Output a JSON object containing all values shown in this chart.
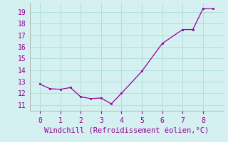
{
  "x": [
    0,
    0.5,
    1,
    1.5,
    2,
    2.5,
    3,
    3.5,
    4,
    5,
    6,
    7,
    7.5,
    8,
    8.5
  ],
  "y": [
    12.8,
    12.4,
    12.35,
    12.5,
    11.7,
    11.55,
    11.6,
    11.1,
    12.0,
    13.9,
    16.3,
    17.5,
    17.5,
    19.3,
    19.3
  ],
  "line_color": "#990099",
  "marker_color": "#990099",
  "bg_color": "#d4f0f0",
  "grid_color": "#b0dede",
  "xlabel": "Windchill (Refroidissement éolien,°C)",
  "xlim": [
    -0.5,
    9.0
  ],
  "ylim": [
    10.5,
    19.8
  ],
  "xticks": [
    0,
    1,
    2,
    3,
    4,
    5,
    6,
    7,
    8
  ],
  "yticks": [
    11,
    12,
    13,
    14,
    15,
    16,
    17,
    18,
    19
  ],
  "font_color": "#990099",
  "font_size": 7,
  "xlabel_fontsize": 7.5
}
